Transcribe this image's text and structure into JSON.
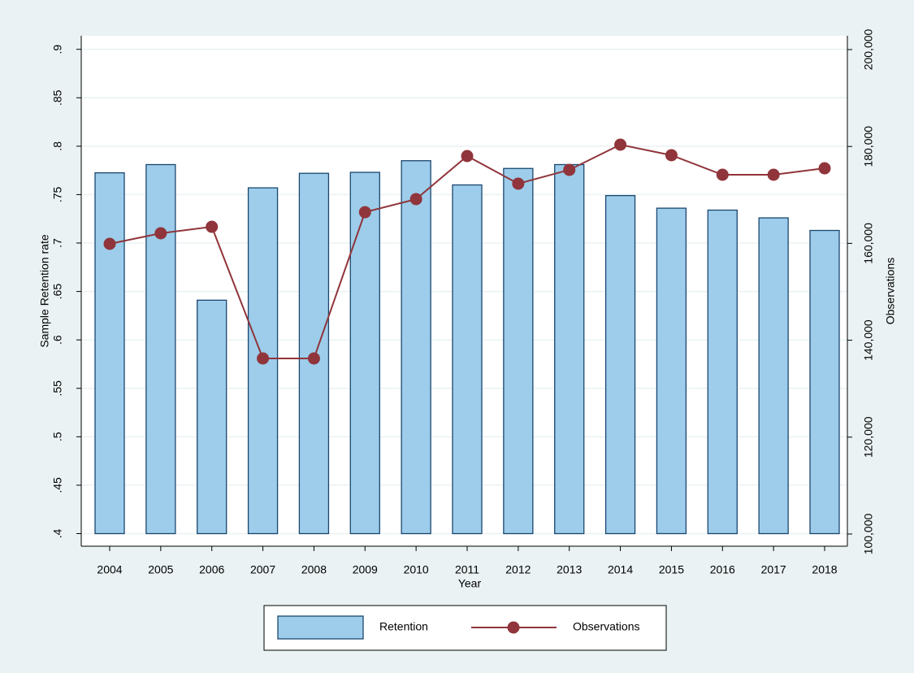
{
  "chart_data": {
    "type": "bar_line",
    "x_label": "Year",
    "y_label": "Sample Retention rate",
    "y2_label": "Observations",
    "categories": [
      "2004",
      "2005",
      "2006",
      "2007",
      "2008",
      "2009",
      "2010",
      "2011",
      "2012",
      "2013",
      "2014",
      "2015",
      "2016",
      "2017",
      "2018"
    ],
    "series": [
      {
        "name": "Retention",
        "type": "bar",
        "color": "#9dcdea",
        "edge_color": "#1a476f",
        "values": [
          0.7725,
          0.781,
          0.641,
          0.757,
          0.772,
          0.773,
          0.785,
          0.76,
          0.777,
          0.781,
          0.749,
          0.736,
          0.734,
          0.726,
          0.713
        ]
      },
      {
        "name": "Observations",
        "type": "line",
        "axis": "y2",
        "color": "#90353b",
        "values": [
          159900,
          162080,
          163420,
          136240,
          136240,
          166440,
          169130,
          178020,
          172320,
          175170,
          180370,
          178190,
          174160,
          174160,
          175500
        ]
      }
    ],
    "ylim": [
      0.387,
      0.914
    ],
    "yticks": [
      {
        "value": 0.4,
        "label": ".4"
      },
      {
        "value": 0.45,
        "label": ".45"
      },
      {
        "value": 0.5,
        "label": ".5"
      },
      {
        "value": 0.55,
        "label": ".55"
      },
      {
        "value": 0.6,
        "label": ".6"
      },
      {
        "value": 0.65,
        "label": ".65"
      },
      {
        "value": 0.7,
        "label": ".7"
      },
      {
        "value": 0.75,
        "label": ".75"
      },
      {
        "value": 0.8,
        "label": ".8"
      },
      {
        "value": 0.85,
        "label": ".85"
      },
      {
        "value": 0.9,
        "label": ".9"
      }
    ],
    "y2lim": [
      97483,
      202852
    ],
    "y2ticks": [
      {
        "value": 100000,
        "label": "100,000"
      },
      {
        "value": 120000,
        "label": "120,000"
      },
      {
        "value": 140000,
        "label": "140,000"
      },
      {
        "value": 160000,
        "label": "160,000"
      },
      {
        "value": 180000,
        "label": "180,000"
      },
      {
        "value": 200000,
        "label": "200,000"
      }
    ],
    "grid": true,
    "legend": "bottom"
  }
}
